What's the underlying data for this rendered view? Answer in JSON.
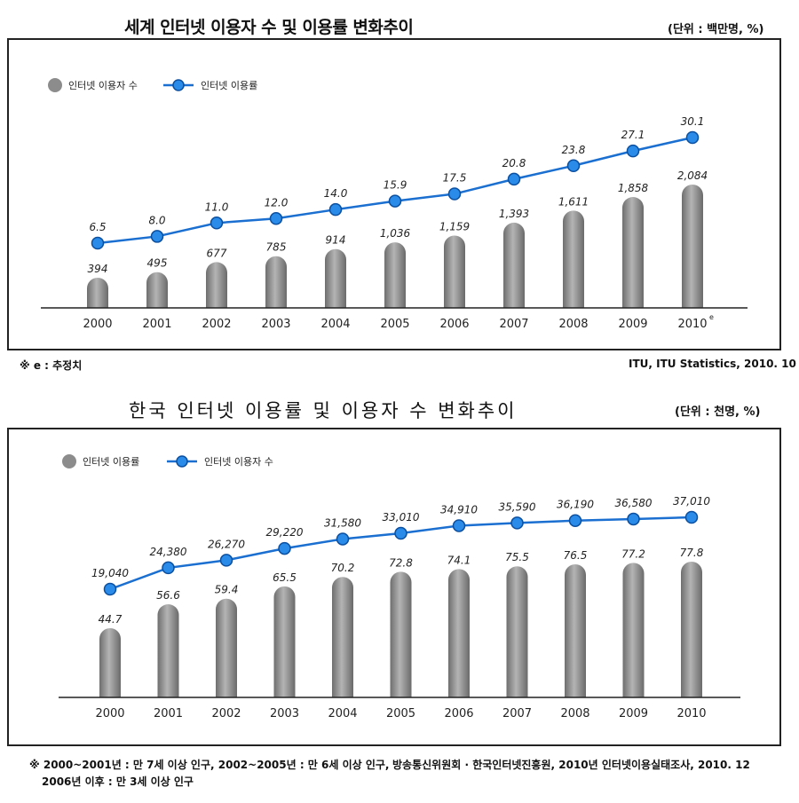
{
  "world": {
    "title": "세계 인터넷 이용자 수 및 이용률 변화추이",
    "unit": "(단위 : 백만명, %)",
    "note_left": "※ e : 추정치",
    "note_right": "ITU,  ITU Statistics, 2010. 10"
  },
  "korea": {
    "title": "한국 인터넷 이용률 및 이용자 수 변화추이",
    "unit": "(단위 : 천명, %)",
    "note_left_line1": "※  2000~2001년 : 만 7세 이상 인구, 2002~2005년 : 만 6세 이상 인구,",
    "note_left_line2": "2006년 이후 : 만 3세 이상 인구",
    "note_right": "방송통신위원회 · 한국인터넷진흥원, 2010년 인터넷이용실태조사, 2010. 12"
  },
  "colors": {
    "bar": "#8c8c8c",
    "line": "#1a6fd0",
    "marker": "#2a8be8"
  },
  "chart_data": [
    {
      "type": "bar",
      "categories": [
        "2000",
        "2001",
        "2002",
        "2003",
        "2004",
        "2005",
        "2006",
        "2007",
        "2008",
        "2009",
        "2010"
      ],
      "category_suffix_last": "e",
      "bar_series": {
        "name": "인터넷 이용자 수",
        "values": [
          394,
          495,
          677,
          785,
          914,
          1036,
          1159,
          1393,
          1611,
          1858,
          2084
        ],
        "labels": [
          "394",
          "495",
          "677",
          "785",
          "914",
          "1,036",
          "1,159",
          "1,393",
          "1,611",
          "1,858",
          "2,084"
        ]
      },
      "line_series": {
        "name": "인터넷 이용률",
        "values": [
          6.5,
          8.0,
          11.0,
          12.0,
          14.0,
          15.9,
          17.5,
          20.8,
          23.8,
          27.1,
          30.1
        ],
        "labels": [
          "6.5",
          "8.0",
          "11.0",
          "12.0",
          "14.0",
          "15.9",
          "17.5",
          "20.8",
          "23.8",
          "27.1",
          "30.1"
        ]
      },
      "legend": "top-left",
      "grid": false
    },
    {
      "type": "bar",
      "categories": [
        "2000",
        "2001",
        "2002",
        "2003",
        "2004",
        "2005",
        "2006",
        "2007",
        "2008",
        "2009",
        "2010"
      ],
      "bar_series": {
        "name": "인터넷 이용률",
        "values": [
          44.7,
          56.6,
          59.4,
          65.5,
          70.2,
          72.8,
          74.1,
          75.5,
          76.5,
          77.2,
          77.8
        ],
        "labels": [
          "44.7",
          "56.6",
          "59.4",
          "65.5",
          "70.2",
          "72.8",
          "74.1",
          "75.5",
          "76.5",
          "77.2",
          "77.8"
        ]
      },
      "line_series": {
        "name": "인터넷 이용자 수",
        "values": [
          19040,
          24380,
          26270,
          29220,
          31580,
          33010,
          34910,
          35590,
          36190,
          36580,
          37010
        ],
        "labels": [
          "19,040",
          "24,380",
          "26,270",
          "29,220",
          "31,580",
          "33,010",
          "34,910",
          "35,590",
          "36,190",
          "36,580",
          "37,010"
        ]
      },
      "legend": "top-left",
      "grid": false
    }
  ]
}
